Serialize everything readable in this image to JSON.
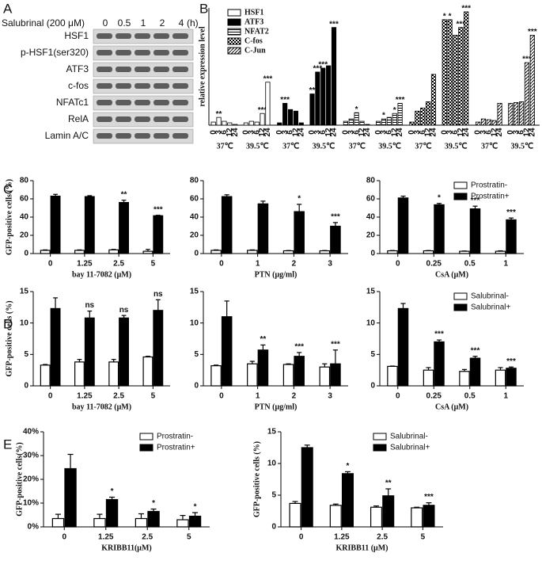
{
  "panel_labels": [
    "A",
    "B",
    "C",
    "D",
    "E"
  ],
  "blot": {
    "treatment": "Salubrinal (200 μM)",
    "lanes": [
      "0",
      "0.5",
      "1",
      "2",
      "4"
    ],
    "unit": "(h)",
    "rows": [
      "HSF1",
      "p-HSF1(ser320)",
      "ATF3",
      "c-fos",
      "NFATc1",
      "RelA",
      "Lamin A/C"
    ]
  },
  "chart_data": [
    {
      "type": "pattern-bar",
      "ylabel": "relative expression level",
      "categories": [
        "0",
        "3",
        "6",
        "12",
        "24",
        "0",
        "3",
        "6",
        "12",
        "24"
      ],
      "groups": [
        "37℃",
        "39.5℃"
      ],
      "ylim": [
        0,
        150
      ],
      "legend": "upper left",
      "series": [
        {
          "name": "HSF1",
          "color": "#ffffff",
          "pattern": "open",
          "values": [
            4,
            10,
            5,
            3,
            1,
            3,
            5,
            4,
            15,
            55
          ],
          "annotations": [
            null,
            "**",
            null,
            null,
            null,
            null,
            null,
            null,
            "***",
            "***"
          ]
        },
        {
          "name": "ATF3",
          "color": "#000000",
          "pattern": "solid",
          "values": [
            3,
            28,
            20,
            18,
            3,
            40,
            68,
            73,
            76,
            125
          ],
          "annotations": [
            null,
            "***",
            null,
            null,
            null,
            "**",
            "***",
            "***",
            null,
            "***"
          ]
        },
        {
          "name": "NFAT2",
          "color": "#ffffff",
          "pattern": "lines",
          "values": [
            5,
            8,
            16,
            5,
            1,
            5,
            8,
            10,
            15,
            28
          ],
          "annotations": [
            null,
            null,
            "*",
            null,
            null,
            null,
            "*",
            null,
            "*",
            "***"
          ]
        },
        {
          "name": "C-fos",
          "color": "#ffffff",
          "pattern": "check",
          "values": [
            4,
            18,
            22,
            30,
            65,
            135,
            135,
            115,
            125,
            145
          ],
          "annotations": [
            null,
            null,
            null,
            null,
            null,
            "*",
            "*",
            null,
            "***",
            "***"
          ]
        },
        {
          "name": "C-Jun",
          "color": "#ffffff",
          "pattern": "hatch",
          "values": [
            4,
            8,
            7,
            6,
            28,
            28,
            29,
            30,
            80,
            115
          ],
          "annotations": [
            null,
            null,
            null,
            null,
            null,
            null,
            null,
            null,
            "***",
            "***"
          ]
        }
      ]
    },
    {
      "type": "bar",
      "ylabel": "GFP-positive cells (%)",
      "xlabel": "bay 11-7082 (μM)",
      "categories": [
        "0",
        "1.25",
        "2.5",
        "5"
      ],
      "ylim": [
        0,
        80
      ],
      "yticks": [
        0,
        20,
        40,
        60,
        80
      ],
      "series": [
        {
          "color": "#ffffff",
          "values": [
            3.5,
            3.5,
            4,
            2.5
          ],
          "errors": [
            0.5,
            0.5,
            0.5,
            2
          ]
        },
        {
          "color": "#000000",
          "values": [
            63,
            62.5,
            56,
            41.5
          ],
          "errors": [
            2,
            1,
            2.5,
            0.5
          ],
          "annotations": [
            null,
            null,
            "**",
            "***"
          ]
        }
      ]
    },
    {
      "type": "bar",
      "xlabel": "PTN (μg/ml)",
      "categories": [
        "0",
        "1",
        "2",
        "3"
      ],
      "ylim": [
        0,
        80
      ],
      "yticks": [
        0,
        20,
        40,
        60,
        80
      ],
      "series": [
        {
          "color": "#ffffff",
          "values": [
            3.5,
            3.5,
            3,
            3
          ],
          "errors": [
            0.5,
            0.5,
            0.3,
            0.3
          ]
        },
        {
          "color": "#000000",
          "values": [
            62.5,
            54.5,
            46,
            30
          ],
          "errors": [
            2,
            3,
            8,
            4
          ],
          "annotations": [
            null,
            null,
            "*",
            "***"
          ]
        }
      ]
    },
    {
      "type": "bar",
      "xlabel": "CsA (μM)",
      "categories": [
        "0",
        "0.25",
        "0.5",
        "1"
      ],
      "ylim": [
        0,
        80
      ],
      "yticks": [
        0,
        20,
        40,
        60,
        80
      ],
      "legend": "upper right",
      "series": [
        {
          "name": "Prostratin-",
          "color": "#ffffff",
          "values": [
            3,
            3,
            2.5,
            2.5
          ],
          "errors": [
            0.3,
            0.3,
            0.3,
            0.5
          ]
        },
        {
          "name": "Prostratin+",
          "color": "#000000",
          "values": [
            61,
            53.5,
            49,
            37
          ],
          "errors": [
            2,
            1.5,
            3,
            2
          ],
          "annotations": [
            null,
            "*",
            "***",
            "***"
          ]
        }
      ]
    },
    {
      "type": "bar",
      "ylabel": "GFP-positive cells (%)",
      "xlabel": "bay 11-7082 (μM)",
      "categories": [
        "0",
        "1.25",
        "2.5",
        "5"
      ],
      "ylim": [
        0,
        15
      ],
      "yticks": [
        0,
        5,
        10,
        15
      ],
      "series": [
        {
          "color": "#ffffff",
          "values": [
            3.3,
            3.8,
            3.8,
            4.6
          ],
          "errors": [
            0.1,
            0.4,
            0.4,
            0.1
          ]
        },
        {
          "color": "#000000",
          "values": [
            12.3,
            10.8,
            10.8,
            12
          ],
          "errors": [
            1.7,
            1.1,
            0.4,
            1.7
          ],
          "annotations": [
            null,
            "ns",
            "ns",
            "ns"
          ]
        }
      ]
    },
    {
      "type": "bar",
      "xlabel": "PTN (μg/ml)",
      "categories": [
        "0",
        "1",
        "2",
        "3"
      ],
      "ylim": [
        0,
        15
      ],
      "yticks": [
        0,
        5,
        10,
        15
      ],
      "series": [
        {
          "color": "#ffffff",
          "values": [
            3.2,
            3.5,
            3.4,
            3
          ],
          "errors": [
            0.1,
            0.4,
            0.1,
            0.5
          ]
        },
        {
          "color": "#000000",
          "values": [
            11,
            5.7,
            4.7,
            3.5
          ],
          "errors": [
            2.5,
            0.8,
            0.6,
            2.2
          ],
          "annotations": [
            null,
            "**",
            "***",
            "***"
          ]
        }
      ]
    },
    {
      "type": "bar",
      "xlabel": "CsA (μM)",
      "categories": [
        "0",
        "0.25",
        "0.5",
        "1"
      ],
      "ylim": [
        0,
        15
      ],
      "yticks": [
        0,
        5,
        10,
        15
      ],
      "legend": "upper right",
      "series": [
        {
          "name": "Salubrinal-",
          "color": "#ffffff",
          "values": [
            3.1,
            2.5,
            2.3,
            2.5
          ],
          "errors": [
            0.05,
            0.4,
            0.3,
            0.4
          ]
        },
        {
          "name": "Salubrinal+",
          "color": "#000000",
          "values": [
            12.3,
            7,
            4.4,
            2.8
          ],
          "errors": [
            0.8,
            0.3,
            0.3,
            0.2
          ],
          "annotations": [
            null,
            "***",
            "***",
            "***"
          ]
        }
      ]
    },
    {
      "type": "bar",
      "ylabel": "GFP-positive cells(%)",
      "xlabel": "KRIBB11(μM)",
      "categories": [
        "0",
        "1.25",
        "2.5",
        "5"
      ],
      "ylim": [
        0,
        40
      ],
      "yticks": [
        {
          "value": 0,
          "label": "0%"
        },
        {
          "value": 10,
          "label": "10%"
        },
        {
          "value": 20,
          "label": "20%"
        },
        {
          "value": 30,
          "label": "30%"
        },
        {
          "value": 40,
          "label": "40%"
        }
      ],
      "legend": "upper right",
      "series": [
        {
          "name": "Prostratin-",
          "color": "#ffffff",
          "values": [
            3.5,
            3.5,
            3.5,
            3
          ],
          "errors": [
            1.8,
            1.8,
            2,
            1.8
          ]
        },
        {
          "name": "Prostratin+",
          "color": "#000000",
          "values": [
            24.5,
            11.5,
            6.5,
            4.5
          ],
          "errors": [
            6,
            1,
            1,
            1.5
          ],
          "annotations": [
            null,
            "*",
            "*",
            "*"
          ]
        }
      ]
    },
    {
      "type": "bar",
      "ylabel": "GFP-positive cells (%)",
      "xlabel": "KRIBB11 (μM)",
      "categories": [
        "0",
        "1.25",
        "2.5",
        "5"
      ],
      "ylim": [
        0,
        15
      ],
      "yticks": [
        0,
        5,
        10,
        15
      ],
      "legend": "upper right",
      "series": [
        {
          "name": "Salubrinal-",
          "color": "#ffffff",
          "values": [
            3.7,
            3.4,
            3.1,
            3
          ],
          "errors": [
            0.3,
            0.2,
            0.2,
            0.1
          ]
        },
        {
          "name": "Salubrinal+",
          "color": "#000000",
          "values": [
            12.5,
            8.4,
            4.9,
            3.4
          ],
          "errors": [
            0.4,
            0.3,
            1.1,
            0.4
          ],
          "annotations": [
            null,
            "*",
            "**",
            "***"
          ]
        }
      ]
    }
  ]
}
